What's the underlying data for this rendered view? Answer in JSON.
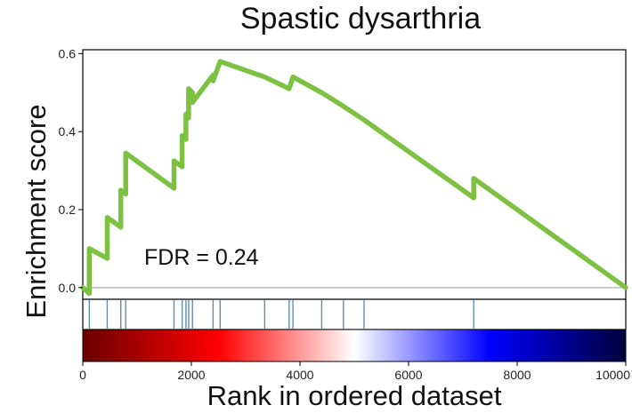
{
  "chart_data": {
    "type": "line",
    "title": "Spastic dysarthria",
    "xlabel": "Rank in ordered dataset",
    "ylabel": "Enrichment score",
    "annotation": "FDR = 0.24",
    "xlim": [
      0,
      10000
    ],
    "ylim": [
      -0.03,
      0.61
    ],
    "x_ticks": [
      0,
      2000,
      4000,
      6000,
      8000,
      10000
    ],
    "x_tick_labels": [
      "0",
      "2000",
      "4000",
      "6000",
      "8000",
      "10000"
    ],
    "y_ticks": [
      0.0,
      0.2,
      0.4,
      0.6
    ],
    "y_tick_labels": [
      "0.0",
      "0.2",
      "0.4",
      "0.6"
    ],
    "grid": false,
    "zero_line": true,
    "line_color": "#7dc142",
    "series": [
      {
        "x": [
          0,
          120,
          120,
          450,
          450,
          700,
          700,
          790,
          790,
          1680,
          1680,
          1830,
          1830,
          1900,
          1900,
          1950,
          1950,
          2020,
          2020,
          2400,
          2400,
          2530,
          2530,
          3350,
          3350,
          3800,
          3800,
          3870,
          3870,
          4400,
          4400,
          4800,
          4800,
          5180,
          5180,
          7200,
          7200,
          10000
        ],
        "y": [
          0.0,
          -0.015,
          0.1,
          0.075,
          0.18,
          0.155,
          0.25,
          0.24,
          0.345,
          0.255,
          0.325,
          0.31,
          0.39,
          0.38,
          0.445,
          0.435,
          0.51,
          0.5,
          0.475,
          0.545,
          0.53,
          0.58,
          0.58,
          0.54,
          0.54,
          0.51,
          0.51,
          0.54,
          0.54,
          0.5,
          0.5,
          0.465,
          0.465,
          0.43,
          0.43,
          0.23,
          0.28,
          0.0
        ]
      }
    ],
    "hit_positions": [
      120,
      450,
      700,
      790,
      1680,
      1830,
      1900,
      1950,
      2020,
      2400,
      2530,
      3350,
      3800,
      3870,
      4400,
      4800,
      5180,
      7200
    ],
    "hit_color": "#5f8fb0",
    "gradient_colors": [
      "#6b0000",
      "#ff0000",
      "#ffffff",
      "#0000ff",
      "#00003a"
    ]
  }
}
